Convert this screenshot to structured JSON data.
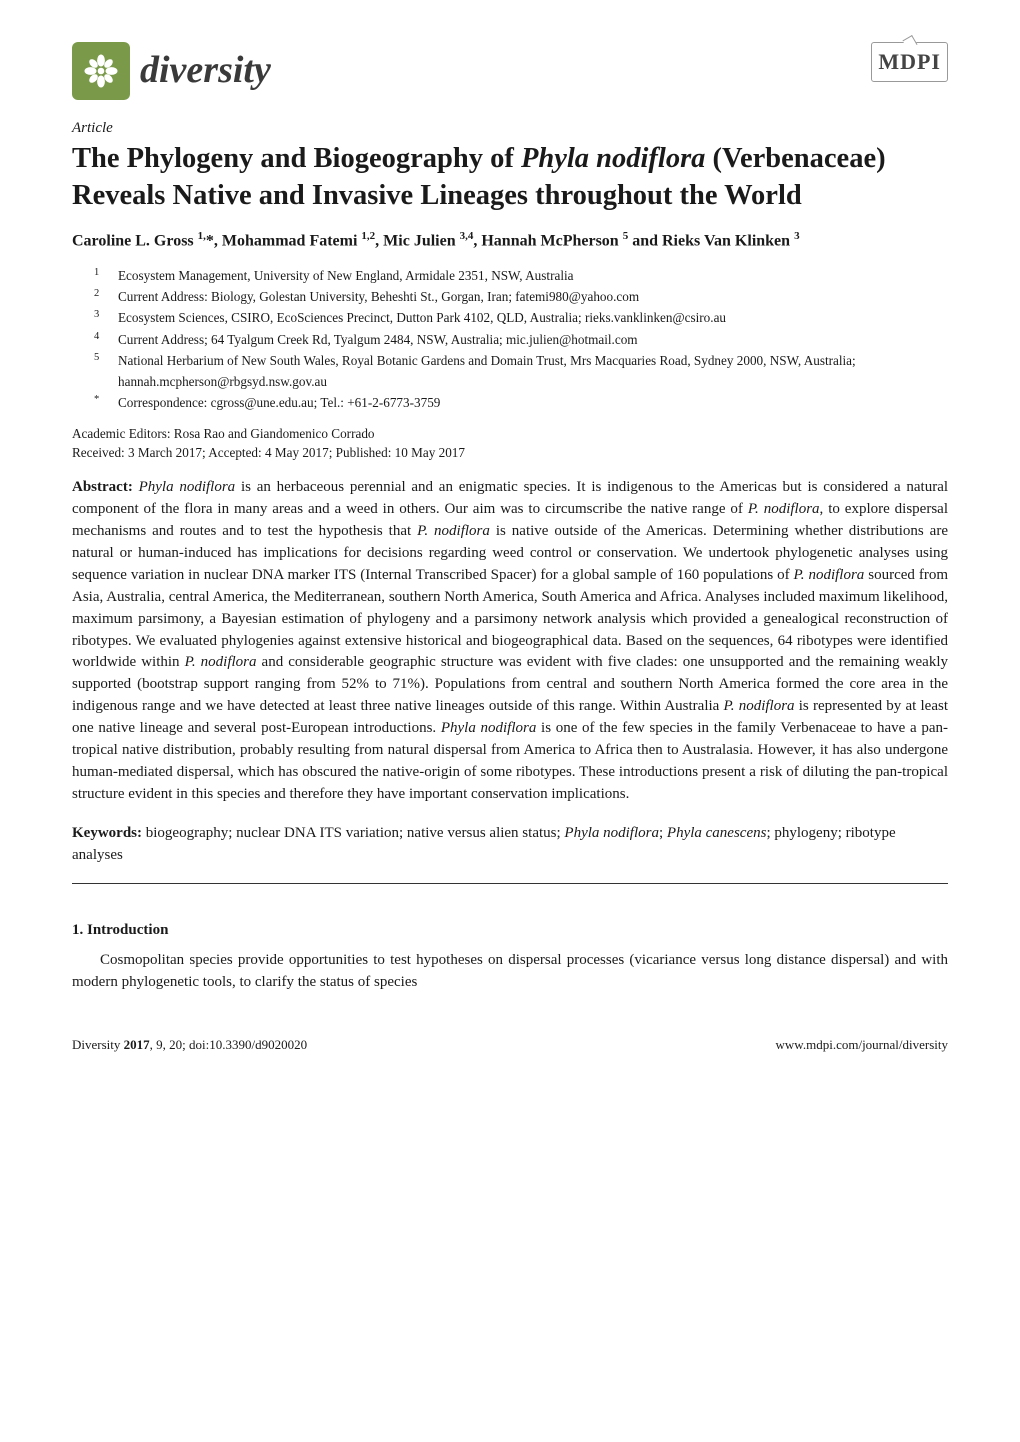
{
  "journal": {
    "name": "diversity"
  },
  "publisher": {
    "name": "MDPI"
  },
  "article_label": "Article",
  "title": {
    "pre1": "The Phylogeny and Biogeography of ",
    "species1": "Phyla nodiflora",
    "post1": " (Verbenaceae) Reveals Native and Invasive Lineages throughout the World"
  },
  "authors_html": "Caroline L. Gross <sup>1,</sup>*, Mohammad Fatemi <sup>1,2</sup>, Mic Julien <sup>3,4</sup>, Hannah McPherson <sup>5</sup> and Rieks Van Klinken <sup>3</sup>",
  "affiliations": [
    {
      "n": "1",
      "t": "Ecosystem Management, University of New England, Armidale 2351, NSW, Australia"
    },
    {
      "n": "2",
      "t": "Current Address: Biology, Golestan University, Beheshti St., Gorgan, Iran; fatemi980@yahoo.com"
    },
    {
      "n": "3",
      "t": "Ecosystem Sciences, CSIRO, EcoSciences Precinct, Dutton Park 4102, QLD, Australia; rieks.vanklinken@csiro.au"
    },
    {
      "n": "4",
      "t": "Current Address; 64 Tyalgum Creek Rd, Tyalgum 2484, NSW, Australia; mic.julien@hotmail.com"
    },
    {
      "n": "5",
      "t": "National Herbarium of New South Wales, Royal Botanic Gardens and Domain Trust, Mrs Macquaries Road, Sydney 2000, NSW, Australia; hannah.mcpherson@rbgsyd.nsw.gov.au"
    },
    {
      "n": "*",
      "t": "Correspondence: cgross@une.edu.au; Tel.: +61-2-6773-3759"
    }
  ],
  "editors": "Academic Editors: Rosa Rao and Giandomenico Corrado",
  "dates": "Received: 3 March 2017; Accepted: 4 May 2017; Published: 10 May 2017",
  "abstract": {
    "label": "Abstract:",
    "p": [
      {
        "t": " ",
        "i": false
      },
      {
        "t": "Phyla nodiflora",
        "i": true
      },
      {
        "t": " is an herbaceous perennial and an enigmatic species. It is indigenous to the Americas but is considered a natural component of the flora in many areas and a weed in others. Our aim was to circumscribe the native range of ",
        "i": false
      },
      {
        "t": "P. nodiflora",
        "i": true
      },
      {
        "t": ", to explore dispersal mechanisms and routes and to test the hypothesis that ",
        "i": false
      },
      {
        "t": "P. nodiflora",
        "i": true
      },
      {
        "t": " is native outside of the Americas. Determining whether distributions are natural or human-induced has implications for decisions regarding weed control or conservation. We undertook phylogenetic analyses using sequence variation in nuclear DNA marker ITS (Internal Transcribed Spacer) for a global sample of 160 populations of ",
        "i": false
      },
      {
        "t": "P. nodiflora",
        "i": true
      },
      {
        "t": " sourced from Asia, Australia, central America, the Mediterranean, southern North America, South America and Africa. Analyses included maximum likelihood, maximum parsimony, a Bayesian estimation of phylogeny and a parsimony network analysis which provided a genealogical reconstruction of ribotypes. We evaluated phylogenies against extensive historical and biogeographical data. Based on the sequences, 64 ribotypes were identified worldwide within ",
        "i": false
      },
      {
        "t": "P. nodiflora",
        "i": true
      },
      {
        "t": " and considerable geographic structure was evident with five clades: one unsupported and the remaining weakly supported (bootstrap support ranging from 52% to 71%). Populations from central and southern North America formed the core area in the indigenous range and we have detected at least three native lineages outside of this range. Within Australia ",
        "i": false
      },
      {
        "t": "P. nodiflora",
        "i": true
      },
      {
        "t": " is represented by at least one native lineage and several post-European introductions. ",
        "i": false
      },
      {
        "t": "Phyla nodiflora",
        "i": true
      },
      {
        "t": " is one of the few species in the family Verbenaceae to have a pan-tropical native distribution, probably resulting from natural dispersal from America to Africa then to Australasia. However, it has also undergone human-mediated dispersal, which has obscured the native-origin of some ribotypes. These introductions present a risk of diluting the pan-tropical structure evident in this species and therefore they have important conservation implications.",
        "i": false
      }
    ]
  },
  "keywords": {
    "label": "Keywords:",
    "p": [
      {
        "t": " biogeography; nuclear DNA ITS variation; native versus alien status; ",
        "i": false
      },
      {
        "t": "Phyla nodiflora",
        "i": true
      },
      {
        "t": "; ",
        "i": false
      },
      {
        "t": "Phyla canescens",
        "i": true
      },
      {
        "t": "; phylogeny; ribotype analyses",
        "i": false
      }
    ]
  },
  "section1": {
    "heading": "1. Introduction"
  },
  "intro_para": "Cosmopolitan species provide opportunities to test hypotheses on dispersal processes (vicariance versus long distance dispersal) and with modern phylogenetic tools, to clarify the status of species",
  "footer": {
    "left_journal": "Diversity",
    "left_year": "2017",
    "left_rest": ", 9, 20; doi:10.3390/d9020020",
    "right": "www.mdpi.com/journal/diversity"
  },
  "colors": {
    "logo_bg": "#7a9a4a",
    "text": "#1a1a1a",
    "background": "#ffffff"
  }
}
